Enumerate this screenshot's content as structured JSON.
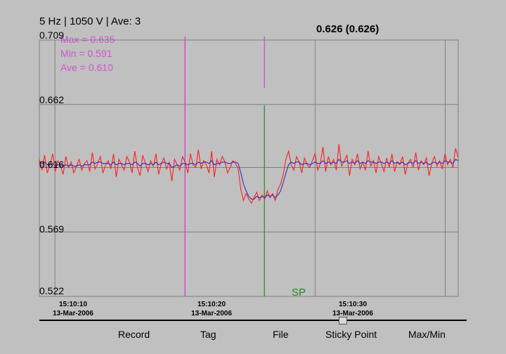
{
  "header": {
    "status": "5 Hz | 1050 V | Ave: 3"
  },
  "readout": {
    "value": "0.626 (0.626)"
  },
  "stats": {
    "max": "Max = 0.635",
    "min": "Min = 0.591",
    "ave": "Ave = 0.610"
  },
  "marker_label": "SP",
  "menu": {
    "record": "Record",
    "tag": "Tag",
    "file": "File",
    "sticky_point": "Sticky Point",
    "maxmin": "Max/Min"
  },
  "slider": {
    "position": 0.71
  },
  "colors": {
    "raw": "#ff2020",
    "average": "#3030c0",
    "tag_marker": "#cc44cc",
    "sticky_marker": "#228822",
    "grid": "#808080"
  },
  "chart_data": {
    "type": "line",
    "ylim": [
      0.522,
      0.709
    ],
    "yticks": [
      "0.709",
      "0.662",
      "0.616",
      "0.569",
      "0.522"
    ],
    "xticks": [
      {
        "time": "15:10:10",
        "date": "13-Mar-2006"
      },
      {
        "time": "15:10:20",
        "date": "13-Mar-2006"
      },
      {
        "time": "15:10:30",
        "date": "13-Mar-2006"
      }
    ],
    "xlim_seconds": [
      8.8,
      41.0
    ],
    "tag_markers_seconds": [
      20.0,
      26.1
    ],
    "series": [
      {
        "values": [
          0.622,
          0.614,
          0.625,
          0.612,
          0.618,
          0.626,
          0.613,
          0.621,
          0.617,
          0.611,
          0.624,
          0.616,
          0.62,
          0.612,
          0.617,
          0.622,
          0.614,
          0.619,
          0.621,
          0.613,
          0.627,
          0.615,
          0.619,
          0.624,
          0.612,
          0.618,
          0.621,
          0.615,
          0.626,
          0.609,
          0.622,
          0.618,
          0.614,
          0.624,
          0.62,
          0.612,
          0.628,
          0.616,
          0.61,
          0.625,
          0.619,
          0.613,
          0.621,
          0.617,
          0.626,
          0.611,
          0.619,
          0.623,
          0.615,
          0.62,
          0.606,
          0.622,
          0.618,
          0.614,
          0.624,
          0.62,
          0.612,
          0.626,
          0.618,
          0.616,
          0.629,
          0.615,
          0.621,
          0.618,
          0.612,
          0.628,
          0.609,
          0.622,
          0.618,
          0.624,
          0.62,
          0.612,
          0.616,
          0.621,
          0.619,
          0.615,
          0.6,
          0.592,
          0.597,
          0.593,
          0.59,
          0.594,
          0.598,
          0.592,
          0.596,
          0.593,
          0.599,
          0.594,
          0.597,
          0.592,
          0.6,
          0.604,
          0.611,
          0.622,
          0.628,
          0.618,
          0.614,
          0.624,
          0.62,
          0.612,
          0.623,
          0.618,
          0.616,
          0.621,
          0.626,
          0.614,
          0.619,
          0.631,
          0.613,
          0.624,
          0.618,
          0.622,
          0.614,
          0.633,
          0.617,
          0.621,
          0.625,
          0.61,
          0.622,
          0.618,
          0.626,
          0.615,
          0.62,
          0.614,
          0.628,
          0.617,
          0.621,
          0.612,
          0.624,
          0.619,
          0.613,
          0.623,
          0.616,
          0.626,
          0.613,
          0.62,
          0.618,
          0.624,
          0.611,
          0.619,
          0.622,
          0.616,
          0.627,
          0.614,
          0.621,
          0.618,
          0.623,
          0.61,
          0.619,
          0.624,
          0.617,
          0.621,
          0.615,
          0.626,
          0.618,
          0.622,
          0.616,
          0.63,
          0.623
        ]
      },
      {
        "values": [
          0.62,
          0.619,
          0.62,
          0.618,
          0.618,
          0.619,
          0.617,
          0.618,
          0.618,
          0.617,
          0.618,
          0.617,
          0.618,
          0.617,
          0.617,
          0.618,
          0.617,
          0.618,
          0.618,
          0.618,
          0.62,
          0.619,
          0.62,
          0.62,
          0.619,
          0.619,
          0.619,
          0.618,
          0.62,
          0.618,
          0.619,
          0.619,
          0.618,
          0.619,
          0.619,
          0.618,
          0.62,
          0.619,
          0.617,
          0.619,
          0.619,
          0.618,
          0.619,
          0.618,
          0.62,
          0.618,
          0.619,
          0.62,
          0.619,
          0.619,
          0.616,
          0.617,
          0.618,
          0.617,
          0.619,
          0.619,
          0.618,
          0.619,
          0.619,
          0.618,
          0.62,
          0.619,
          0.62,
          0.62,
          0.619,
          0.621,
          0.618,
          0.619,
          0.619,
          0.62,
          0.62,
          0.619,
          0.619,
          0.62,
          0.62,
          0.619,
          0.612,
          0.604,
          0.599,
          0.595,
          0.593,
          0.593,
          0.595,
          0.594,
          0.595,
          0.594,
          0.596,
          0.595,
          0.596,
          0.594,
          0.596,
          0.599,
          0.605,
          0.612,
          0.618,
          0.62,
          0.619,
          0.62,
          0.62,
          0.618,
          0.619,
          0.619,
          0.618,
          0.619,
          0.62,
          0.619,
          0.619,
          0.621,
          0.619,
          0.62,
          0.619,
          0.62,
          0.619,
          0.622,
          0.62,
          0.62,
          0.621,
          0.619,
          0.62,
          0.619,
          0.621,
          0.619,
          0.62,
          0.619,
          0.621,
          0.62,
          0.62,
          0.619,
          0.62,
          0.62,
          0.619,
          0.62,
          0.619,
          0.621,
          0.619,
          0.62,
          0.619,
          0.62,
          0.618,
          0.619,
          0.62,
          0.619,
          0.621,
          0.619,
          0.62,
          0.619,
          0.62,
          0.618,
          0.619,
          0.62,
          0.619,
          0.62,
          0.619,
          0.621,
          0.62,
          0.62,
          0.619,
          0.622,
          0.621
        ]
      }
    ]
  }
}
